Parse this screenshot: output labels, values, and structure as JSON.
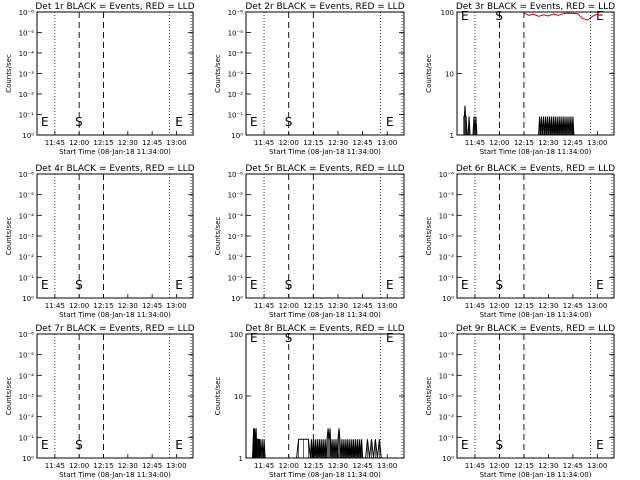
{
  "chart_data": [
    {
      "type": "line",
      "title": "Det 1r BLACK = Events, RED = LLD",
      "xlabel": "Start Time (08-Jan-18 11:34:00)",
      "ylabel": "Counts/sec",
      "x_ticks": [
        "11:45",
        "12:00",
        "12:15",
        "12:30",
        "12:45",
        "13:00"
      ],
      "y_scale": "log",
      "y_ticks": [
        "10⁰",
        "10⁻¹",
        "10⁻²",
        "10⁻³",
        "10⁻⁴",
        "10⁻⁵",
        "10⁻⁶"
      ],
      "ylim": [
        1,
        1e-06
      ],
      "markers": [
        {
          "label": "S",
          "time": "12:00"
        },
        {
          "label": "E",
          "time": "12:58"
        }
      ],
      "series": []
    },
    {
      "type": "line",
      "title": "Det 2r BLACK = Events, RED = LLD",
      "xlabel": "Start Time (08-Jan-18 11:34:00)",
      "ylabel": "Counts/sec",
      "x_ticks": [
        "11:45",
        "12:00",
        "12:15",
        "12:30",
        "12:45",
        "13:00"
      ],
      "y_scale": "log",
      "y_ticks": [
        "10⁰",
        "10⁻¹",
        "10⁻²",
        "10⁻³",
        "10⁻⁴",
        "10⁻⁵",
        "10⁻⁶"
      ],
      "ylim": [
        1,
        1e-06
      ],
      "markers": [
        {
          "label": "S",
          "time": "12:00"
        },
        {
          "label": "E",
          "time": "12:58"
        }
      ],
      "series": []
    },
    {
      "type": "line",
      "title": "Det 3r BLACK = Events, RED = LLD",
      "xlabel": "Start Time (08-Jan-18 11:34:00)",
      "ylabel": "Counts/sec",
      "x_ticks": [
        "11:45",
        "12:00",
        "12:15",
        "12:30",
        "12:45",
        "13:00"
      ],
      "y_scale": "log",
      "y_ticks": [
        "1",
        "10",
        "100"
      ],
      "ylim": [
        1,
        100
      ],
      "markers": [
        {
          "label": "S",
          "time": "12:00"
        },
        {
          "label": "E",
          "time": "12:58"
        }
      ],
      "series": [
        {
          "color": "#000000",
          "points": [
            [
              11.633,
              2
            ],
            [
              11.642,
              2
            ],
            [
              11.648,
              3
            ],
            [
              11.655,
              2
            ],
            [
              11.66,
              2
            ],
            [
              11.67,
              1
            ],
            [
              11.68,
              1
            ],
            [
              11.69,
              2
            ],
            [
              11.7,
              1
            ],
            [
              11.73,
              1
            ],
            [
              11.74,
              2
            ],
            [
              11.75,
              1
            ],
            [
              11.76,
              2
            ],
            [
              11.77,
              1
            ],
            [
              12.15,
              1
            ],
            [
              12.2,
              1
            ],
            [
              12.4,
              1
            ],
            [
              12.41,
              2
            ],
            [
              12.42,
              1
            ],
            [
              12.43,
              2
            ],
            [
              12.44,
              1
            ],
            [
              12.45,
              2
            ],
            [
              12.46,
              1
            ],
            [
              12.47,
              2
            ],
            [
              12.48,
              1
            ],
            [
              12.49,
              2
            ],
            [
              12.5,
              1
            ],
            [
              12.51,
              2
            ],
            [
              12.52,
              1
            ],
            [
              12.53,
              2
            ],
            [
              12.54,
              1
            ],
            [
              12.55,
              2
            ],
            [
              12.56,
              1
            ],
            [
              12.57,
              2
            ],
            [
              12.58,
              1
            ],
            [
              12.59,
              2
            ],
            [
              12.6,
              1
            ],
            [
              12.61,
              2
            ],
            [
              12.62,
              1
            ],
            [
              12.63,
              2
            ],
            [
              12.64,
              1
            ],
            [
              12.65,
              2
            ],
            [
              12.66,
              1
            ],
            [
              12.67,
              2
            ],
            [
              12.68,
              1
            ],
            [
              12.69,
              2
            ],
            [
              12.7,
              1
            ],
            [
              12.71,
              2
            ],
            [
              12.72,
              1
            ],
            [
              12.73,
              2
            ],
            [
              12.74,
              1
            ],
            [
              12.75,
              2
            ],
            [
              12.76,
              1
            ],
            [
              12.77,
              1
            ],
            [
              12.8,
              1
            ],
            [
              12.9,
              1
            ],
            [
              12.92,
              1
            ],
            [
              12.95,
              1
            ]
          ]
        },
        {
          "color": "#cc0000",
          "points": [
            [
              12.25,
              96
            ],
            [
              12.3,
              88
            ],
            [
              12.35,
              92
            ],
            [
              12.4,
              85
            ],
            [
              12.45,
              90
            ],
            [
              12.5,
              86
            ],
            [
              12.55,
              93
            ],
            [
              12.6,
              88
            ],
            [
              12.65,
              94
            ],
            [
              12.7,
              96
            ],
            [
              12.8,
              94
            ],
            [
              12.85,
              78
            ],
            [
              12.9,
              74
            ],
            [
              12.95,
              85
            ],
            [
              13.0,
              92
            ],
            [
              13.03,
              88
            ]
          ]
        }
      ]
    },
    {
      "type": "line",
      "title": "Det 4r BLACK = Events, RED = LLD",
      "xlabel": "Start Time (08-Jan-18 11:34:00)",
      "ylabel": "Counts/sec",
      "x_ticks": [
        "11:45",
        "12:00",
        "12:15",
        "12:30",
        "12:45",
        "13:00"
      ],
      "y_scale": "log",
      "y_ticks": [
        "10⁰",
        "10⁻¹",
        "10⁻²",
        "10⁻³",
        "10⁻⁴",
        "10⁻⁵",
        "10⁻⁶"
      ],
      "ylim": [
        1,
        1e-06
      ],
      "markers": [
        {
          "label": "S",
          "time": "12:00"
        },
        {
          "label": "E",
          "time": "12:58"
        }
      ],
      "series": []
    },
    {
      "type": "line",
      "title": "Det 5r BLACK = Events, RED = LLD",
      "xlabel": "Start Time (08-Jan-18 11:34:00)",
      "ylabel": "Counts/sec",
      "x_ticks": [
        "11:45",
        "12:00",
        "12:15",
        "12:30",
        "12:45",
        "13:00"
      ],
      "y_scale": "log",
      "y_ticks": [
        "10⁰",
        "10⁻¹",
        "10⁻²",
        "10⁻³",
        "10⁻⁴",
        "10⁻⁵",
        "10⁻⁶"
      ],
      "ylim": [
        1,
        1e-06
      ],
      "markers": [
        {
          "label": "S",
          "time": "12:00"
        },
        {
          "label": "E",
          "time": "12:58"
        }
      ],
      "series": []
    },
    {
      "type": "line",
      "title": "Det 6r BLACK = Events, RED = LLD",
      "xlabel": "Start Time (08-Jan-18 11:34:00)",
      "ylabel": "Counts/sec",
      "x_ticks": [
        "11:45",
        "12:00",
        "12:15",
        "12:30",
        "12:45",
        "13:00"
      ],
      "y_scale": "log",
      "y_ticks": [
        "10⁰",
        "10⁻¹",
        "10⁻²",
        "10⁻³",
        "10⁻⁴",
        "10⁻⁵",
        "10⁻⁶"
      ],
      "ylim": [
        1,
        1e-06
      ],
      "markers": [
        {
          "label": "S",
          "time": "12:00"
        },
        {
          "label": "E",
          "time": "12:58"
        }
      ],
      "series": []
    },
    {
      "type": "line",
      "title": "Det 7r BLACK = Events, RED = LLD",
      "xlabel": "Start Time (08-Jan-18 11:34:00)",
      "ylabel": "Counts/sec",
      "x_ticks": [
        "11:45",
        "12:00",
        "12:15",
        "12:30",
        "12:45",
        "13:00"
      ],
      "y_scale": "log",
      "y_ticks": [
        "10⁰",
        "10⁻¹",
        "10⁻²",
        "10⁻³",
        "10⁻⁴",
        "10⁻⁵",
        "10⁻⁶"
      ],
      "ylim": [
        1,
        1e-06
      ],
      "markers": [
        {
          "label": "S",
          "time": "12:00"
        },
        {
          "label": "E",
          "time": "12:58"
        }
      ],
      "series": []
    },
    {
      "type": "line",
      "title": "Det 8r BLACK = Events, RED = LLD",
      "xlabel": "Start Time (08-Jan-18 11:34:00)",
      "ylabel": "Counts/sec",
      "x_ticks": [
        "11:45",
        "12:00",
        "12:15",
        "12:30",
        "12:45",
        "13:00"
      ],
      "y_scale": "log",
      "y_ticks": [
        "1",
        "10",
        "100"
      ],
      "ylim": [
        1,
        100
      ],
      "markers": [
        {
          "label": "S",
          "time": "12:00"
        },
        {
          "label": "E",
          "time": "12:58"
        }
      ],
      "series": [
        {
          "color": "#000000",
          "points": [
            [
              11.633,
              1
            ],
            [
              11.64,
              2
            ],
            [
              11.645,
              3
            ],
            [
              11.65,
              2
            ],
            [
              11.655,
              3
            ],
            [
              11.66,
              2
            ],
            [
              11.665,
              2
            ],
            [
              11.67,
              3
            ],
            [
              11.675,
              1
            ],
            [
              11.68,
              2
            ],
            [
              11.685,
              2
            ],
            [
              11.69,
              2
            ],
            [
              11.695,
              2
            ],
            [
              11.7,
              2
            ],
            [
              11.705,
              1
            ],
            [
              11.71,
              2
            ],
            [
              11.72,
              1
            ],
            [
              11.73,
              2
            ],
            [
              11.74,
              1
            ],
            [
              11.75,
              2
            ],
            [
              11.76,
              1
            ],
            [
              12.08,
              1
            ],
            [
              12.1,
              2
            ],
            [
              12.15,
              2
            ],
            [
              12.2,
              2
            ],
            [
              12.22,
              1
            ],
            [
              12.23,
              2
            ],
            [
              12.24,
              1
            ],
            [
              12.25,
              2
            ],
            [
              12.26,
              1
            ],
            [
              12.27,
              2
            ],
            [
              12.28,
              1
            ],
            [
              12.29,
              2
            ],
            [
              12.3,
              1
            ],
            [
              12.31,
              2
            ],
            [
              12.32,
              1
            ],
            [
              12.33,
              2
            ],
            [
              12.34,
              1
            ],
            [
              12.35,
              2
            ],
            [
              12.36,
              1
            ],
            [
              12.37,
              2
            ],
            [
              12.38,
              1
            ],
            [
              12.39,
              2
            ],
            [
              12.4,
              3
            ],
            [
              12.41,
              2
            ],
            [
              12.42,
              3
            ],
            [
              12.43,
              1
            ],
            [
              12.44,
              2
            ],
            [
              12.45,
              1
            ],
            [
              12.46,
              2
            ],
            [
              12.47,
              1
            ],
            [
              12.48,
              2
            ],
            [
              12.49,
              1
            ],
            [
              12.5,
              2
            ],
            [
              12.51,
              3
            ],
            [
              12.52,
              2
            ],
            [
              12.53,
              1
            ],
            [
              12.54,
              2
            ],
            [
              12.55,
              1
            ],
            [
              12.56,
              2
            ],
            [
              12.57,
              1
            ],
            [
              12.58,
              2
            ],
            [
              12.59,
              1
            ],
            [
              12.6,
              2
            ],
            [
              12.61,
              1
            ],
            [
              12.62,
              2
            ],
            [
              12.63,
              1
            ],
            [
              12.64,
              2
            ],
            [
              12.65,
              1
            ],
            [
              12.66,
              2
            ],
            [
              12.67,
              1
            ],
            [
              12.68,
              2
            ],
            [
              12.69,
              1
            ],
            [
              12.7,
              2
            ],
            [
              12.71,
              1
            ],
            [
              12.72,
              2
            ],
            [
              12.73,
              1
            ],
            [
              12.74,
              2
            ],
            [
              12.75,
              1
            ],
            [
              12.78,
              1
            ],
            [
              12.8,
              2
            ],
            [
              12.82,
              1
            ],
            [
              12.84,
              2
            ],
            [
              12.86,
              1
            ],
            [
              12.88,
              2
            ],
            [
              12.9,
              1
            ],
            [
              12.92,
              2
            ],
            [
              12.94,
              1
            ]
          ]
        }
      ]
    },
    {
      "type": "line",
      "title": "Det 9r BLACK = Events, RED = LLD",
      "xlabel": "Start Time (08-Jan-18 11:34:00)",
      "ylabel": "Counts/sec",
      "x_ticks": [
        "11:45",
        "12:00",
        "12:15",
        "12:30",
        "12:45",
        "13:00"
      ],
      "y_scale": "log",
      "y_ticks": [
        "10⁰",
        "10⁻¹",
        "10⁻²",
        "10⁻³",
        "10⁻⁴",
        "10⁻⁵",
        "10⁻⁶"
      ],
      "ylim": [
        1,
        1e-06
      ],
      "markers": [
        {
          "label": "S",
          "time": "12:00"
        },
        {
          "label": "E",
          "time": "12:58"
        }
      ],
      "series": []
    }
  ]
}
